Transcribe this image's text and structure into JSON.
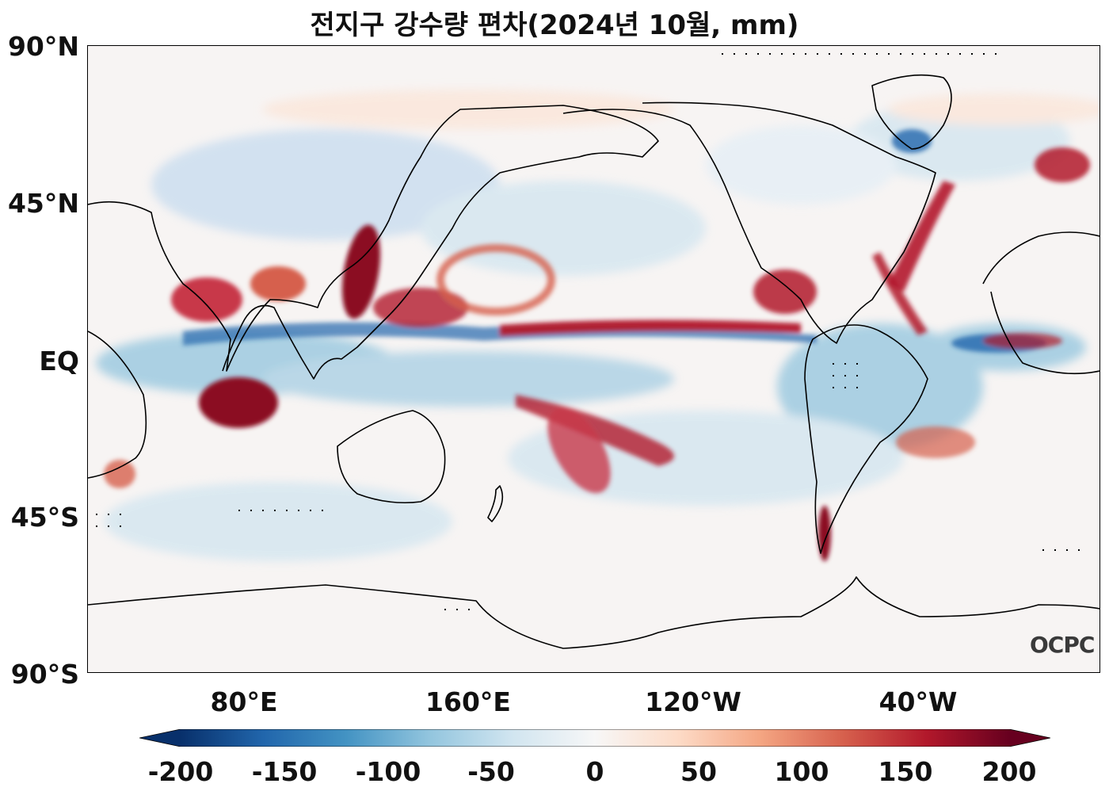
{
  "title": "전지구 강수량 편차(2024년 10월, mm)",
  "lat_labels": [
    "90°N",
    "45°N",
    "EQ",
    "45°S",
    "90°S"
  ],
  "lon_labels": [
    "80°E",
    "160°E",
    "120°W",
    "40°W"
  ],
  "colorbar": {
    "ticks": [
      "-200",
      "-150",
      "-100",
      "-50",
      "0",
      "50",
      "100",
      "150",
      "200"
    ],
    "min": -200,
    "max": 200,
    "extend": "both",
    "colors": [
      "#08306b",
      "#2166ac",
      "#4393c3",
      "#92c5de",
      "#d1e5f0",
      "#f7f7f7",
      "#fddbc7",
      "#f4a582",
      "#d6604d",
      "#b2182b",
      "#67001f"
    ]
  },
  "logo": "OCPC"
}
